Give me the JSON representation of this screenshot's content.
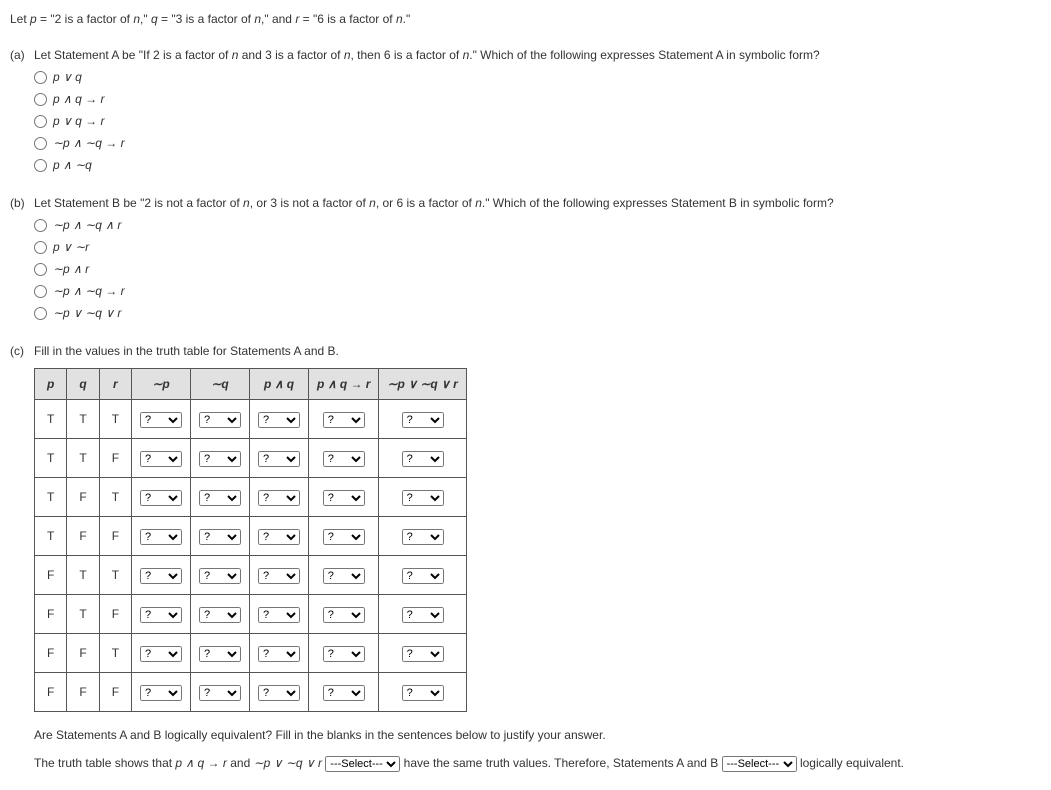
{
  "intro": {
    "prefix": "Let ",
    "p_var": "p",
    "eq": " = ",
    "p_def": "\"2 is a factor of ",
    "n_var": "n",
    "p_def_end": ",\" ",
    "q_var": "q",
    "q_def": "\"3 is a factor of ",
    "q_def_end": ",\" and ",
    "r_var": "r",
    "r_def": "\"6 is a factor of ",
    "r_def_end": ".\""
  },
  "partA": {
    "label": "(a)",
    "text1": "Let Statement A be \"If 2 is a factor of ",
    "text2": " and 3 is a factor of ",
    "text3": ", then 6 is a factor of ",
    "text4": ".\" Which of the following expresses Statement A in symbolic form?",
    "options": [
      "p ∨ q",
      "p ∧ q → r",
      "p ∨ q → r",
      "∼p ∧ ∼q → r",
      "p ∧ ∼q"
    ]
  },
  "partB": {
    "label": "(b)",
    "text1": "Let Statement B be \"2 is not a factor of ",
    "text2": ", or 3 is not a factor of ",
    "text3": ", or 6 is a factor of ",
    "text4": ".\" Which of the following expresses Statement B in symbolic form?",
    "options": [
      "∼p ∧ ∼q ∧ r",
      "p ∨ ∼r",
      "∼p ∧ r",
      "∼p ∧ ∼q → r",
      "∼p ∨ ∼q ∨ r"
    ]
  },
  "partC": {
    "label": "(c)",
    "text": "Fill in the values in the truth table for Statements A and B.",
    "headers": [
      "p",
      "q",
      "r",
      "∼p",
      "∼q",
      "p ∧ q",
      "p ∧ q → r",
      "∼p ∨ ∼q ∨ r"
    ],
    "rows": [
      [
        "T",
        "T",
        "T"
      ],
      [
        "T",
        "T",
        "F"
      ],
      [
        "T",
        "F",
        "T"
      ],
      [
        "T",
        "F",
        "F"
      ],
      [
        "F",
        "T",
        "T"
      ],
      [
        "F",
        "T",
        "F"
      ],
      [
        "F",
        "F",
        "T"
      ],
      [
        "F",
        "F",
        "F"
      ]
    ],
    "select_placeholder": "?"
  },
  "conclusion": {
    "line1": "Are Statements A and B logically equivalent? Fill in the blanks in the sentences below to justify your answer.",
    "line2a": "The truth table shows that ",
    "expr1": "p ∧ q → r",
    "line2b": " and ",
    "expr2": "∼p ∨ ∼q ∨ r",
    "select1_placeholder": "---Select---",
    "line2c": " have the same truth values. Therefore, Statements A and B ",
    "select2_placeholder": "---Select---",
    "line2d": " logically equivalent."
  }
}
